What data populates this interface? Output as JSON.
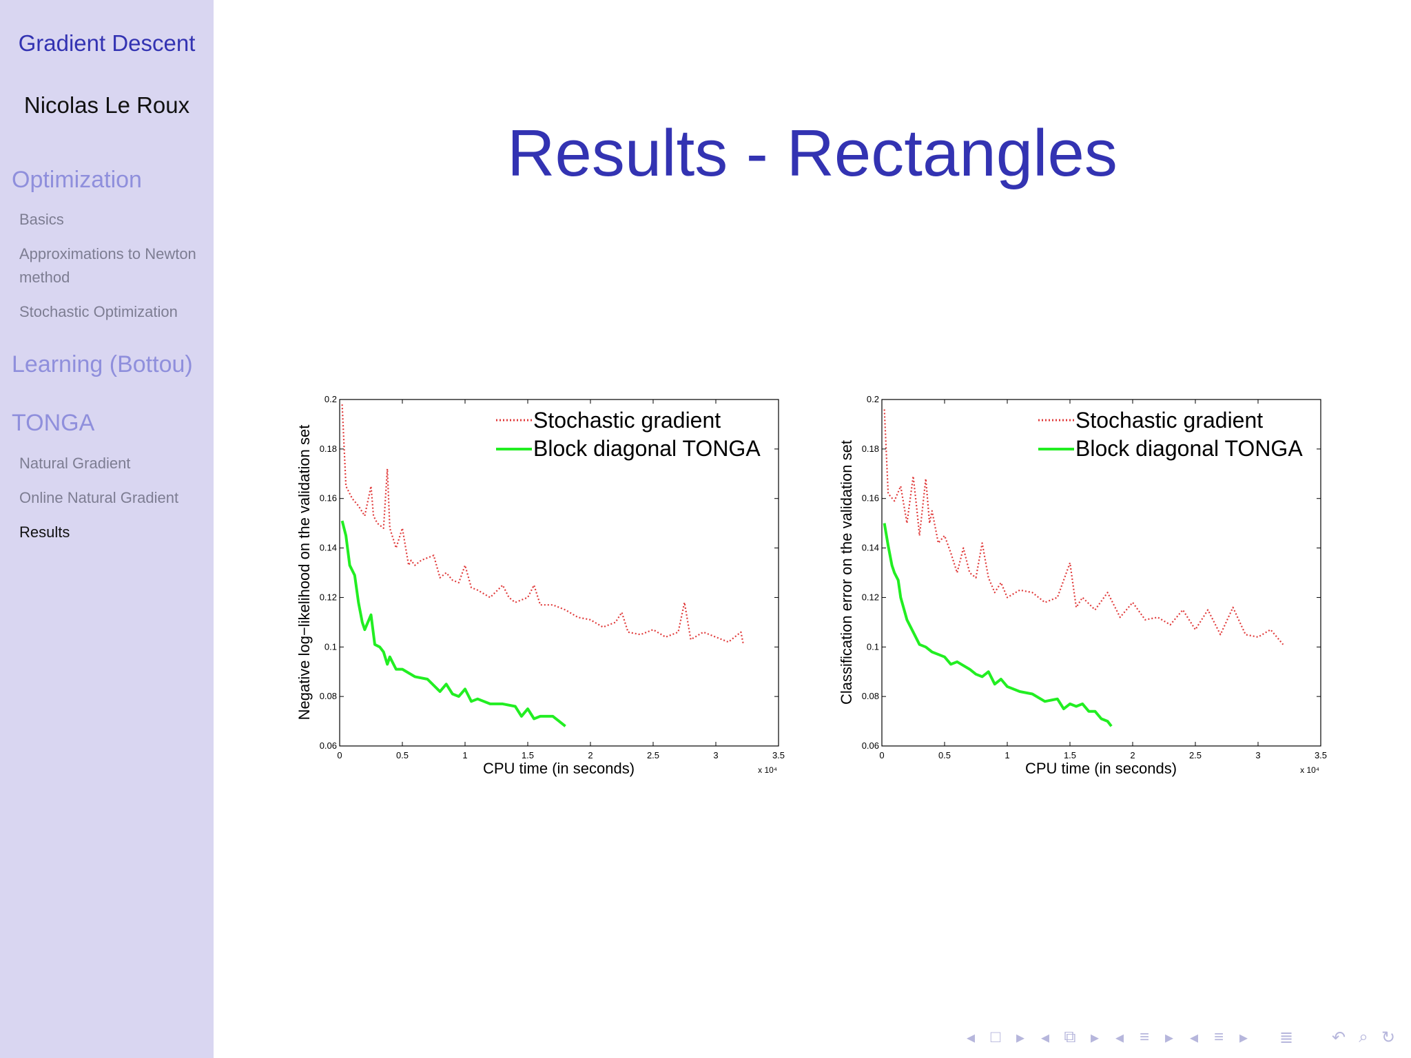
{
  "sidebar": {
    "doc_title": "Gradient Descent",
    "author": "Nicolas Le Roux",
    "sections": [
      {
        "label": "Optimization",
        "items": [
          "Basics",
          "Approximations to Newton method",
          "Stochastic Optimization"
        ]
      },
      {
        "label": "Learning (Bottou)",
        "items": []
      },
      {
        "label": "TONGA",
        "items": [
          "Natural Gradient",
          "Online Natural Gradient",
          "Results"
        ]
      }
    ],
    "current_item": "Results"
  },
  "slide": {
    "title": "Results - Rectangles"
  },
  "colors": {
    "accent": "#3333b2",
    "sgd": "#e03a3a",
    "tonga": "#22ee22",
    "sidebar_bg": "#d9d6f1"
  },
  "chart_data": [
    {
      "type": "line",
      "title": "",
      "xlabel": "CPU time (in seconds)",
      "ylabel": "Negative log−likelihood on the validation set",
      "x_exponent_label": "x 10⁴",
      "xlim": [
        0,
        3.5
      ],
      "ylim": [
        0.06,
        0.2
      ],
      "xticks": [
        0,
        0.5,
        1,
        1.5,
        2,
        2.5,
        3,
        3.5
      ],
      "yticks": [
        0.06,
        0.08,
        0.1,
        0.12,
        0.14,
        0.16,
        0.18,
        0.2
      ],
      "xtick_labels": [
        "0",
        "0.5",
        "1",
        "1.5",
        "2",
        "2.5",
        "3",
        "3.5"
      ],
      "ytick_labels": [
        "0.06",
        "0.08",
        "0.1",
        "0.12",
        "0.14",
        "0.16",
        "0.18",
        "0.2"
      ],
      "legend_position": "top-right",
      "series": [
        {
          "name": "Stochastic gradient",
          "style": "dotted",
          "x": [
            0.02,
            0.05,
            0.1,
            0.15,
            0.2,
            0.25,
            0.27,
            0.3,
            0.35,
            0.38,
            0.4,
            0.45,
            0.5,
            0.55,
            0.57,
            0.6,
            0.65,
            0.75,
            0.8,
            0.85,
            0.9,
            0.95,
            1.0,
            1.05,
            1.1,
            1.2,
            1.3,
            1.35,
            1.4,
            1.5,
            1.55,
            1.6,
            1.7,
            1.8,
            1.9,
            2.0,
            2.1,
            2.2,
            2.25,
            2.3,
            2.4,
            2.5,
            2.6,
            2.7,
            2.75,
            2.8,
            2.9,
            3.0,
            3.1,
            3.2,
            3.22
          ],
          "values": [
            0.198,
            0.165,
            0.16,
            0.157,
            0.153,
            0.165,
            0.153,
            0.15,
            0.148,
            0.172,
            0.148,
            0.14,
            0.148,
            0.133,
            0.135,
            0.133,
            0.135,
            0.137,
            0.128,
            0.13,
            0.127,
            0.126,
            0.133,
            0.124,
            0.123,
            0.12,
            0.125,
            0.12,
            0.118,
            0.12,
            0.125,
            0.117,
            0.117,
            0.115,
            0.112,
            0.111,
            0.108,
            0.11,
            0.114,
            0.106,
            0.105,
            0.107,
            0.104,
            0.106,
            0.118,
            0.103,
            0.106,
            0.104,
            0.102,
            0.106,
            0.101
          ]
        },
        {
          "name": "Block diagonal TONGA",
          "style": "solid",
          "x": [
            0.02,
            0.05,
            0.08,
            0.12,
            0.15,
            0.18,
            0.2,
            0.25,
            0.28,
            0.32,
            0.35,
            0.38,
            0.4,
            0.45,
            0.5,
            0.6,
            0.7,
            0.8,
            0.85,
            0.9,
            0.95,
            1.0,
            1.05,
            1.1,
            1.2,
            1.3,
            1.4,
            1.45,
            1.5,
            1.55,
            1.6,
            1.7,
            1.75,
            1.8
          ],
          "values": [
            0.151,
            0.145,
            0.133,
            0.129,
            0.118,
            0.11,
            0.107,
            0.113,
            0.101,
            0.1,
            0.098,
            0.093,
            0.096,
            0.091,
            0.091,
            0.088,
            0.087,
            0.082,
            0.085,
            0.081,
            0.08,
            0.083,
            0.078,
            0.079,
            0.077,
            0.077,
            0.076,
            0.072,
            0.075,
            0.071,
            0.072,
            0.072,
            0.07,
            0.068
          ]
        }
      ]
    },
    {
      "type": "line",
      "title": "",
      "xlabel": "CPU time (in seconds)",
      "ylabel": "Classification error on the validation set",
      "x_exponent_label": "x 10⁴",
      "xlim": [
        0,
        3.5
      ],
      "ylim": [
        0.06,
        0.2
      ],
      "xticks": [
        0,
        0.5,
        1,
        1.5,
        2,
        2.5,
        3,
        3.5
      ],
      "yticks": [
        0.06,
        0.08,
        0.1,
        0.12,
        0.14,
        0.16,
        0.18,
        0.2
      ],
      "xtick_labels": [
        "0",
        "0.5",
        "1",
        "1.5",
        "2",
        "2.5",
        "3",
        "3.5"
      ],
      "ytick_labels": [
        "0.06",
        "0.08",
        "0.1",
        "0.12",
        "0.14",
        "0.16",
        "0.18",
        "0.2"
      ],
      "legend_position": "top-right",
      "series": [
        {
          "name": "Stochastic gradient",
          "style": "dotted",
          "x": [
            0.02,
            0.05,
            0.1,
            0.15,
            0.2,
            0.25,
            0.28,
            0.3,
            0.35,
            0.38,
            0.4,
            0.45,
            0.5,
            0.55,
            0.6,
            0.65,
            0.7,
            0.75,
            0.8,
            0.85,
            0.9,
            0.95,
            1.0,
            1.1,
            1.2,
            1.3,
            1.4,
            1.5,
            1.55,
            1.6,
            1.7,
            1.8,
            1.9,
            2.0,
            2.1,
            2.2,
            2.3,
            2.4,
            2.5,
            2.6,
            2.7,
            2.8,
            2.9,
            3.0,
            3.1,
            3.2
          ],
          "values": [
            0.196,
            0.162,
            0.159,
            0.165,
            0.15,
            0.169,
            0.155,
            0.145,
            0.168,
            0.15,
            0.155,
            0.142,
            0.145,
            0.138,
            0.13,
            0.14,
            0.13,
            0.128,
            0.142,
            0.128,
            0.122,
            0.126,
            0.12,
            0.123,
            0.122,
            0.118,
            0.12,
            0.134,
            0.116,
            0.12,
            0.115,
            0.122,
            0.112,
            0.118,
            0.111,
            0.112,
            0.109,
            0.115,
            0.107,
            0.115,
            0.105,
            0.116,
            0.105,
            0.104,
            0.107,
            0.101
          ]
        },
        {
          "name": "Block diagonal TONGA",
          "style": "solid",
          "x": [
            0.02,
            0.05,
            0.08,
            0.1,
            0.13,
            0.15,
            0.2,
            0.25,
            0.3,
            0.35,
            0.4,
            0.5,
            0.55,
            0.6,
            0.7,
            0.75,
            0.8,
            0.85,
            0.9,
            0.95,
            1.0,
            1.1,
            1.2,
            1.3,
            1.4,
            1.45,
            1.5,
            1.55,
            1.6,
            1.65,
            1.7,
            1.75,
            1.8,
            1.83
          ],
          "values": [
            0.15,
            0.141,
            0.133,
            0.13,
            0.127,
            0.12,
            0.111,
            0.106,
            0.101,
            0.1,
            0.098,
            0.096,
            0.093,
            0.094,
            0.091,
            0.089,
            0.088,
            0.09,
            0.085,
            0.087,
            0.084,
            0.082,
            0.081,
            0.078,
            0.079,
            0.075,
            0.077,
            0.076,
            0.077,
            0.074,
            0.074,
            0.071,
            0.07,
            0.068
          ]
        }
      ]
    }
  ],
  "nav": {
    "icons": [
      "prev-arrow-icon",
      "frame-icon",
      "next-arrow-icon",
      "prev-arrow-icon",
      "subsection-icon",
      "next-arrow-icon",
      "prev-arrow-icon",
      "section-icon",
      "next-arrow-icon",
      "prev-arrow-icon",
      "section-icon",
      "next-arrow-icon",
      "align-icon",
      "undo-icon",
      "search-icon",
      "redo-icon"
    ]
  }
}
